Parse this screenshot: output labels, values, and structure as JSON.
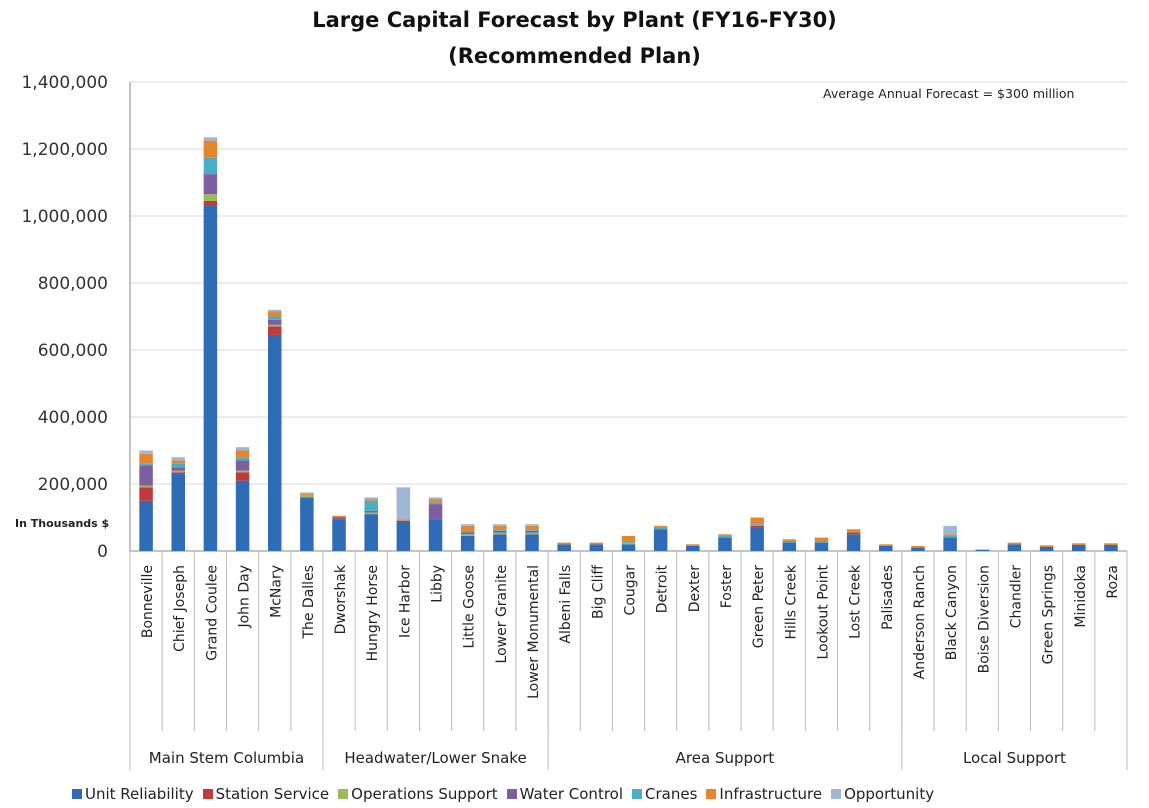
{
  "chart_data": {
    "type": "bar",
    "stacked": true,
    "title_lines": [
      "Large Capital Forecast by Plant (FY16-FY30)",
      "(Recommended Plan)"
    ],
    "annotation": "Average Annual Forecast = $300 million",
    "ylabel": "In Thousands $",
    "ylim": [
      0,
      1400000
    ],
    "yticks": [
      "0",
      "200,000",
      "400,000",
      "600,000",
      "800,000",
      "1,000,000",
      "1,200,000",
      "1,400,000"
    ],
    "grid": true,
    "legend_position": "bottom",
    "categories": [
      "Bonneville",
      "Chief Joseph",
      "Grand Coulee",
      "John Day",
      "McNary",
      "The Dalles",
      "Dworshak",
      "Hungry Horse",
      "Ice Harbor",
      "Libby",
      "Little Goose",
      "Lower Granite",
      "Lower Monumental",
      "Albeni Falls",
      "Big Cliff",
      "Cougar",
      "Detroit",
      "Dexter",
      "Foster",
      "Green Peter",
      "Hills Creek",
      "Lookout Point",
      "Lost Creek",
      "Palisades",
      "Anderson Ranch",
      "Black Canyon",
      "Boise Diversion",
      "Chandler",
      "Green Springs",
      "Minidoka",
      "Roza"
    ],
    "groups": [
      {
        "name": "Main Stem Columbia",
        "count": 6
      },
      {
        "name": "Headwater/Lower Snake",
        "count": 7
      },
      {
        "name": "Area Support",
        "count": 11
      },
      {
        "name": "Local Support",
        "count": 7
      }
    ],
    "series": [
      {
        "name": "Unit Reliability",
        "color": "#2f6bb7",
        "values": [
          150000,
          230000,
          1030000,
          210000,
          645000,
          160000,
          95000,
          110000,
          90000,
          95000,
          45000,
          50000,
          50000,
          20000,
          20000,
          20000,
          65000,
          15000,
          40000,
          70000,
          25000,
          25000,
          50000,
          15000,
          10000,
          40000,
          4000,
          20000,
          12000,
          18000,
          18000
        ]
      },
      {
        "name": "Station Service",
        "color": "#c0393b",
        "values": [
          40000,
          5000,
          15000,
          25000,
          25000,
          0,
          0,
          0,
          0,
          0,
          0,
          0,
          0,
          0,
          0,
          0,
          0,
          0,
          0,
          5000,
          0,
          0,
          5000,
          0,
          0,
          0,
          0,
          0,
          0,
          0,
          0
        ]
      },
      {
        "name": "Operations Support",
        "color": "#9bbb59",
        "values": [
          5000,
          5000,
          20000,
          5000,
          5000,
          5000,
          0,
          5000,
          0,
          0,
          5000,
          5000,
          5000,
          0,
          0,
          5000,
          0,
          0,
          0,
          0,
          0,
          0,
          0,
          0,
          0,
          0,
          0,
          0,
          0,
          0,
          0
        ]
      },
      {
        "name": "Water Control",
        "color": "#7d5fa0",
        "values": [
          60000,
          10000,
          60000,
          30000,
          15000,
          0,
          5000,
          5000,
          0,
          45000,
          5000,
          5000,
          5000,
          0,
          0,
          0,
          0,
          0,
          0,
          0,
          0,
          0,
          0,
          0,
          0,
          0,
          0,
          0,
          0,
          0,
          0
        ]
      },
      {
        "name": "Cranes",
        "color": "#4bacc6",
        "values": [
          5000,
          10000,
          50000,
          10000,
          10000,
          0,
          0,
          30000,
          0,
          5000,
          5000,
          5000,
          5000,
          0,
          0,
          5000,
          5000,
          0,
          5000,
          5000,
          5000,
          5000,
          0,
          0,
          0,
          5000,
          0,
          0,
          0,
          0,
          0
        ]
      },
      {
        "name": "Infrastructure",
        "color": "#e3872d",
        "values": [
          30000,
          10000,
          50000,
          20000,
          15000,
          5000,
          5000,
          5000,
          5000,
          10000,
          15000,
          10000,
          10000,
          5000,
          5000,
          15000,
          5000,
          5000,
          5000,
          20000,
          5000,
          10000,
          10000,
          5000,
          5000,
          5000,
          0,
          5000,
          5000,
          5000,
          5000
        ]
      },
      {
        "name": "Opportunity",
        "color": "#9fb6d6",
        "values": [
          10000,
          10000,
          10000,
          10000,
          5000,
          5000,
          0,
          5000,
          95000,
          5000,
          5000,
          5000,
          5000,
          0,
          0,
          0,
          0,
          0,
          0,
          0,
          0,
          0,
          0,
          0,
          0,
          25000,
          0,
          0,
          0,
          0,
          0
        ]
      }
    ]
  }
}
